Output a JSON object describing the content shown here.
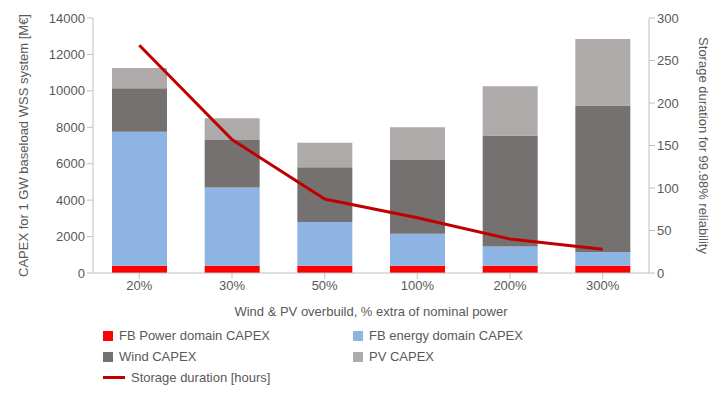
{
  "chart_data": {
    "type": "bar",
    "stacked": true,
    "grid": false,
    "legend": "bottom",
    "x_label": "Wind & PV overbuild, % extra of nominal power",
    "y_label": "CAPEX for 1 GW baseload WSS system [M€]",
    "y2_label": "Storage duration for 99.98% reliability",
    "categories": [
      "20%",
      "30%",
      "50%",
      "100%",
      "200%",
      "300%"
    ],
    "ylim": [
      0,
      14000
    ],
    "yticks": [
      0,
      2000,
      4000,
      6000,
      8000,
      10000,
      12000,
      14000
    ],
    "y2lim": [
      0,
      300
    ],
    "y2ticks": [
      0,
      50,
      100,
      150,
      200,
      250,
      300
    ],
    "series": [
      {
        "name": "FB Power domain CAPEX",
        "type": "bar",
        "color": "#ff0000",
        "values": [
          400,
          400,
          400,
          400,
          400,
          400
        ]
      },
      {
        "name": "FB energy domain CAPEX",
        "type": "bar",
        "color": "#8eb4e3",
        "values": [
          7350,
          4300,
          2400,
          1750,
          1050,
          750
        ]
      },
      {
        "name": "Wind CAPEX",
        "type": "bar",
        "color": "#767171",
        "values": [
          2400,
          2600,
          3000,
          4050,
          6100,
          8050
        ]
      },
      {
        "name": "PV CAPEX",
        "type": "bar",
        "color": "#aeaaaa",
        "values": [
          1100,
          1200,
          1350,
          1800,
          2700,
          3650
        ]
      },
      {
        "name": "Storage duration [hours]",
        "type": "line",
        "axis": "y2",
        "color": "#c00000",
        "values": [
          268,
          157,
          87,
          65,
          40,
          28
        ]
      }
    ]
  }
}
